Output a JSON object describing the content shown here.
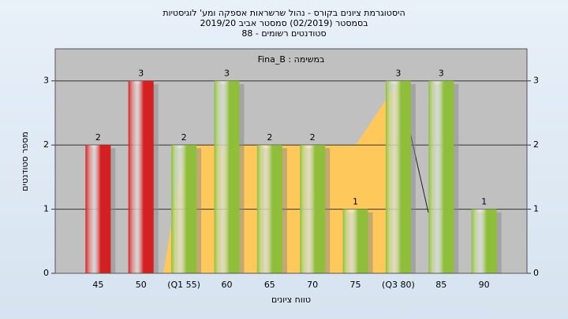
{
  "chart_data": {
    "type": "bar",
    "title": [
      "היסטוגרמת ציונים בקורס - נהול שרשראות אספקה ומע' לוגיסטיות",
      "בסמסטר (02/2019) סמסטר אביב 2019/20",
      "סטודנטים רשומים - 88"
    ],
    "subtitle": "במשימה : Fina_B",
    "x_label": "טווח ציונים",
    "y_label": "מספר סטודנטים",
    "categories": [
      "45",
      "50",
      "(Q1 55)",
      "60",
      "65",
      "70",
      "75",
      "(Q3 80)",
      "85",
      "90"
    ],
    "values": [
      2,
      3,
      2,
      3,
      2,
      2,
      1,
      3,
      3,
      1
    ],
    "colors": [
      "#d42020",
      "#d42020",
      "#8fbf3a",
      "#8fbf3a",
      "#8fbf3a",
      "#8fbf3a",
      "#8fbf3a",
      "#8fbf3a",
      "#8fbf3a",
      "#8fbf3a"
    ],
    "ylim": [
      0,
      3.5
    ],
    "yticks": [
      0,
      1,
      2,
      3
    ],
    "grid": true
  }
}
